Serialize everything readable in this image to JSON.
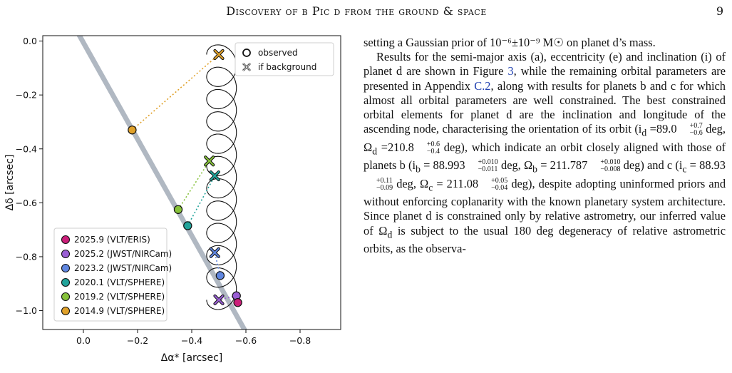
{
  "header": {
    "title": "Discovery of β Pic d from the ground & space",
    "page_number": "9"
  },
  "figure": {
    "xlabel": "Δα* [arcsec]",
    "ylabel": "Δδ [arcsec]",
    "xticks": [
      "0.0",
      "−0.2",
      "−0.4",
      "−0.6",
      "−0.8"
    ],
    "yticks": [
      "0.0",
      "−0.2",
      "−0.4",
      "−0.6",
      "−0.8",
      "−1.0"
    ],
    "marker_legend": [
      {
        "symbol": "circle",
        "label": "observed"
      },
      {
        "symbol": "cross",
        "label": "if background"
      }
    ],
    "epoch_legend": [
      {
        "label": "2025.9 (VLT/ERIS)",
        "color": "#cc1f7a"
      },
      {
        "label": "2025.2 (JWST/NIRCam)",
        "color": "#9a5fd4"
      },
      {
        "label": "2023.2 (JWST/NIRCam)",
        "color": "#5f86e0"
      },
      {
        "label": "2020.1 (VLT/SPHERE)",
        "color": "#21a39a"
      },
      {
        "label": "2019.2 (VLT/SPHERE)",
        "color": "#86c23a"
      },
      {
        "label": "2014.9 (VLT/SPHERE)",
        "color": "#e0a12a"
      }
    ]
  },
  "chart_data": {
    "type": "scatter",
    "xlabel": "Δα* [arcsec]",
    "ylabel": "Δδ [arcsec]",
    "xlim": [
      0.15,
      -0.95
    ],
    "ylim": [
      -1.07,
      0.02
    ],
    "grid": false,
    "legend_placement": [
      "top-right",
      "bottom-left"
    ],
    "disk_line": {
      "color": "#b0b8c2",
      "points": [
        [
          0.02,
          0.03
        ],
        [
          -0.6,
          -1.08
        ]
      ]
    },
    "background_track": {
      "center_start": [
        -0.51,
        -0.05
      ],
      "center_end": [
        -0.51,
        -0.96
      ],
      "loops": 11,
      "radius_x": 0.055,
      "radius_y": 0.055
    },
    "series": [
      {
        "name": "2014.9 (VLT/SPHERE)",
        "color": "#e0a12a",
        "observed": [
          -0.18,
          -0.33
        ],
        "background": [
          -0.5,
          -0.05
        ]
      },
      {
        "name": "2019.2 (VLT/SPHERE)",
        "color": "#86c23a",
        "observed": [
          -0.35,
          -0.625
        ],
        "background": [
          -0.465,
          -0.445
        ]
      },
      {
        "name": "2020.1 (VLT/SPHERE)",
        "color": "#21a39a",
        "observed": [
          -0.385,
          -0.685
        ],
        "background": [
          -0.485,
          -0.5
        ]
      },
      {
        "name": "2023.2 (JWST/NIRCam)",
        "color": "#5f86e0",
        "observed": [
          -0.505,
          -0.87
        ],
        "background": [
          -0.485,
          -0.785
        ]
      },
      {
        "name": "2025.2 (JWST/NIRCam)",
        "color": "#9a5fd4",
        "observed": [
          -0.565,
          -0.945
        ],
        "background": [
          -0.5,
          -0.96
        ]
      },
      {
        "name": "2025.9 (VLT/ERIS)",
        "color": "#cc1f7a",
        "observed": [
          -0.57,
          -0.97
        ],
        "background": null
      }
    ]
  },
  "text": {
    "para1": "setting a Gaussian prior of 10⁻⁶±10⁻⁹ M☉ on planet d’s mass.",
    "para2_a": "Results for the semi-major axis (a), eccentricity (e) and inclination (i) of planet d are shown in Figure ",
    "para2_ref1": "3",
    "para2_b": ", while the remaining orbital parameters are presented in Appendix ",
    "para2_ref2": "C.2",
    "para2_c": ", along with results for planets b and c for which almost all orbital parameters are well constrained.  The best constrained orbital elements for planet d are the inclination and longitude of the ascending node, characterising the orientation of its orbit (i",
    "sub_d": "d",
    "eq_id": " =89.0",
    "eq_id_sup": "+0.7",
    "eq_id_sub": "−0.6",
    "txt_deg1": " deg, Ω",
    "eq_Od": " =210.8",
    "eq_Od_sup": "+0.6",
    "eq_Od_sub": "−0.4",
    "txt_deg2": " deg), which indicate an orbit closely aligned with those of planets b (i",
    "sub_b": "b",
    "eq_ib": " = 88.993",
    "eq_ib_sup": "+0.010",
    "eq_ib_sub": "−0.011",
    "txt_deg3": " deg,  Ω",
    "eq_Ob": " = 211.787",
    "eq_Ob_sup": "+0.010",
    "eq_Ob_sub": "−0.008",
    "txt_deg4": " deg) and c (i",
    "sub_c": "c",
    "eq_ic": " = 88.93",
    "eq_ic_sup": "+0.11",
    "eq_ic_sub": "−0.09",
    "txt_deg5": " deg, Ω",
    "eq_Oc": " = 211.08",
    "eq_Oc_sup": "+0.05",
    "eq_Oc_sub": "−0.04",
    "para2_d": " deg), despite adopting uninformed priors and without enforcing coplanarity with the known planetary system architecture. Since planet d is constrained only by relative astrometry, our inferred value of Ω",
    "para2_e": " is subject to the usual 180 deg degeneracy of relative astrometric orbits, as the observa-"
  }
}
